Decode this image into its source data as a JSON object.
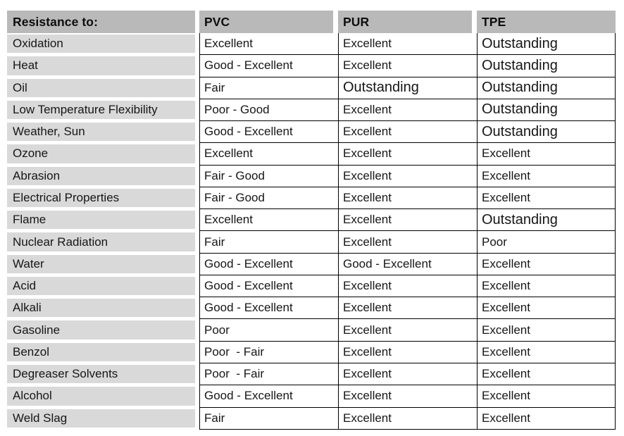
{
  "table": {
    "header": {
      "label_column": "Resistance to:",
      "columns": [
        "PVC",
        "PUR",
        "TPE"
      ]
    },
    "emphasis_value": "Outstanding",
    "colors": {
      "header_bg": "#b9b9b9",
      "row_label_bg": "#d9d9d9",
      "border": "#000000",
      "text": "#161616"
    },
    "rows": [
      {
        "label": "Oxidation",
        "pvc": "Excellent",
        "pur": "Excellent",
        "tpe": "Outstanding"
      },
      {
        "label": "Heat",
        "pvc": "Good - Excellent",
        "pur": "Excellent",
        "tpe": "Outstanding"
      },
      {
        "label": "Oil",
        "pvc": "Fair",
        "pur": "Outstanding",
        "tpe": "Outstanding"
      },
      {
        "label": "Low Temperature Flexibility",
        "pvc": "Poor - Good",
        "pur": "Excellent",
        "tpe": "Outstanding"
      },
      {
        "label": "Weather, Sun",
        "pvc": "Good - Excellent",
        "pur": "Excellent",
        "tpe": "Outstanding"
      },
      {
        "label": "Ozone",
        "pvc": "Excellent",
        "pur": "Excellent",
        "tpe": "Excellent"
      },
      {
        "label": "Abrasion",
        "pvc": "Fair - Good",
        "pur": "Excellent",
        "tpe": "Excellent"
      },
      {
        "label": "Electrical Properties",
        "pvc": "Fair - Good",
        "pur": "Excellent",
        "tpe": "Excellent"
      },
      {
        "label": "Flame",
        "pvc": "Excellent",
        "pur": "Excellent",
        "tpe": "Outstanding"
      },
      {
        "label": "Nuclear Radiation",
        "pvc": "Fair",
        "pur": "Excellent",
        "tpe": "Poor"
      },
      {
        "label": "Water",
        "pvc": "Good - Excellent",
        "pur": "Good - Excellent",
        "tpe": "Excellent"
      },
      {
        "label": "Acid",
        "pvc": "Good - Excellent",
        "pur": "Excellent",
        "tpe": "Excellent"
      },
      {
        "label": "Alkali",
        "pvc": "Good - Excellent",
        "pur": "Excellent",
        "tpe": "Excellent"
      },
      {
        "label": "Gasoline",
        "pvc": "Poor",
        "pur": "Excellent",
        "tpe": "Excellent"
      },
      {
        "label": "Benzol",
        "pvc": "Poor  - Fair",
        "pur": "Excellent",
        "tpe": "Excellent"
      },
      {
        "label": "Degreaser Solvents",
        "pvc": "Poor  - Fair",
        "pur": "Excellent",
        "tpe": "Excellent"
      },
      {
        "label": "Alcohol",
        "pvc": "Good - Excellent",
        "pur": "Excellent",
        "tpe": "Excellent"
      },
      {
        "label": "Weld Slag",
        "pvc": "Fair",
        "pur": "Excellent",
        "tpe": "Excellent"
      }
    ]
  }
}
